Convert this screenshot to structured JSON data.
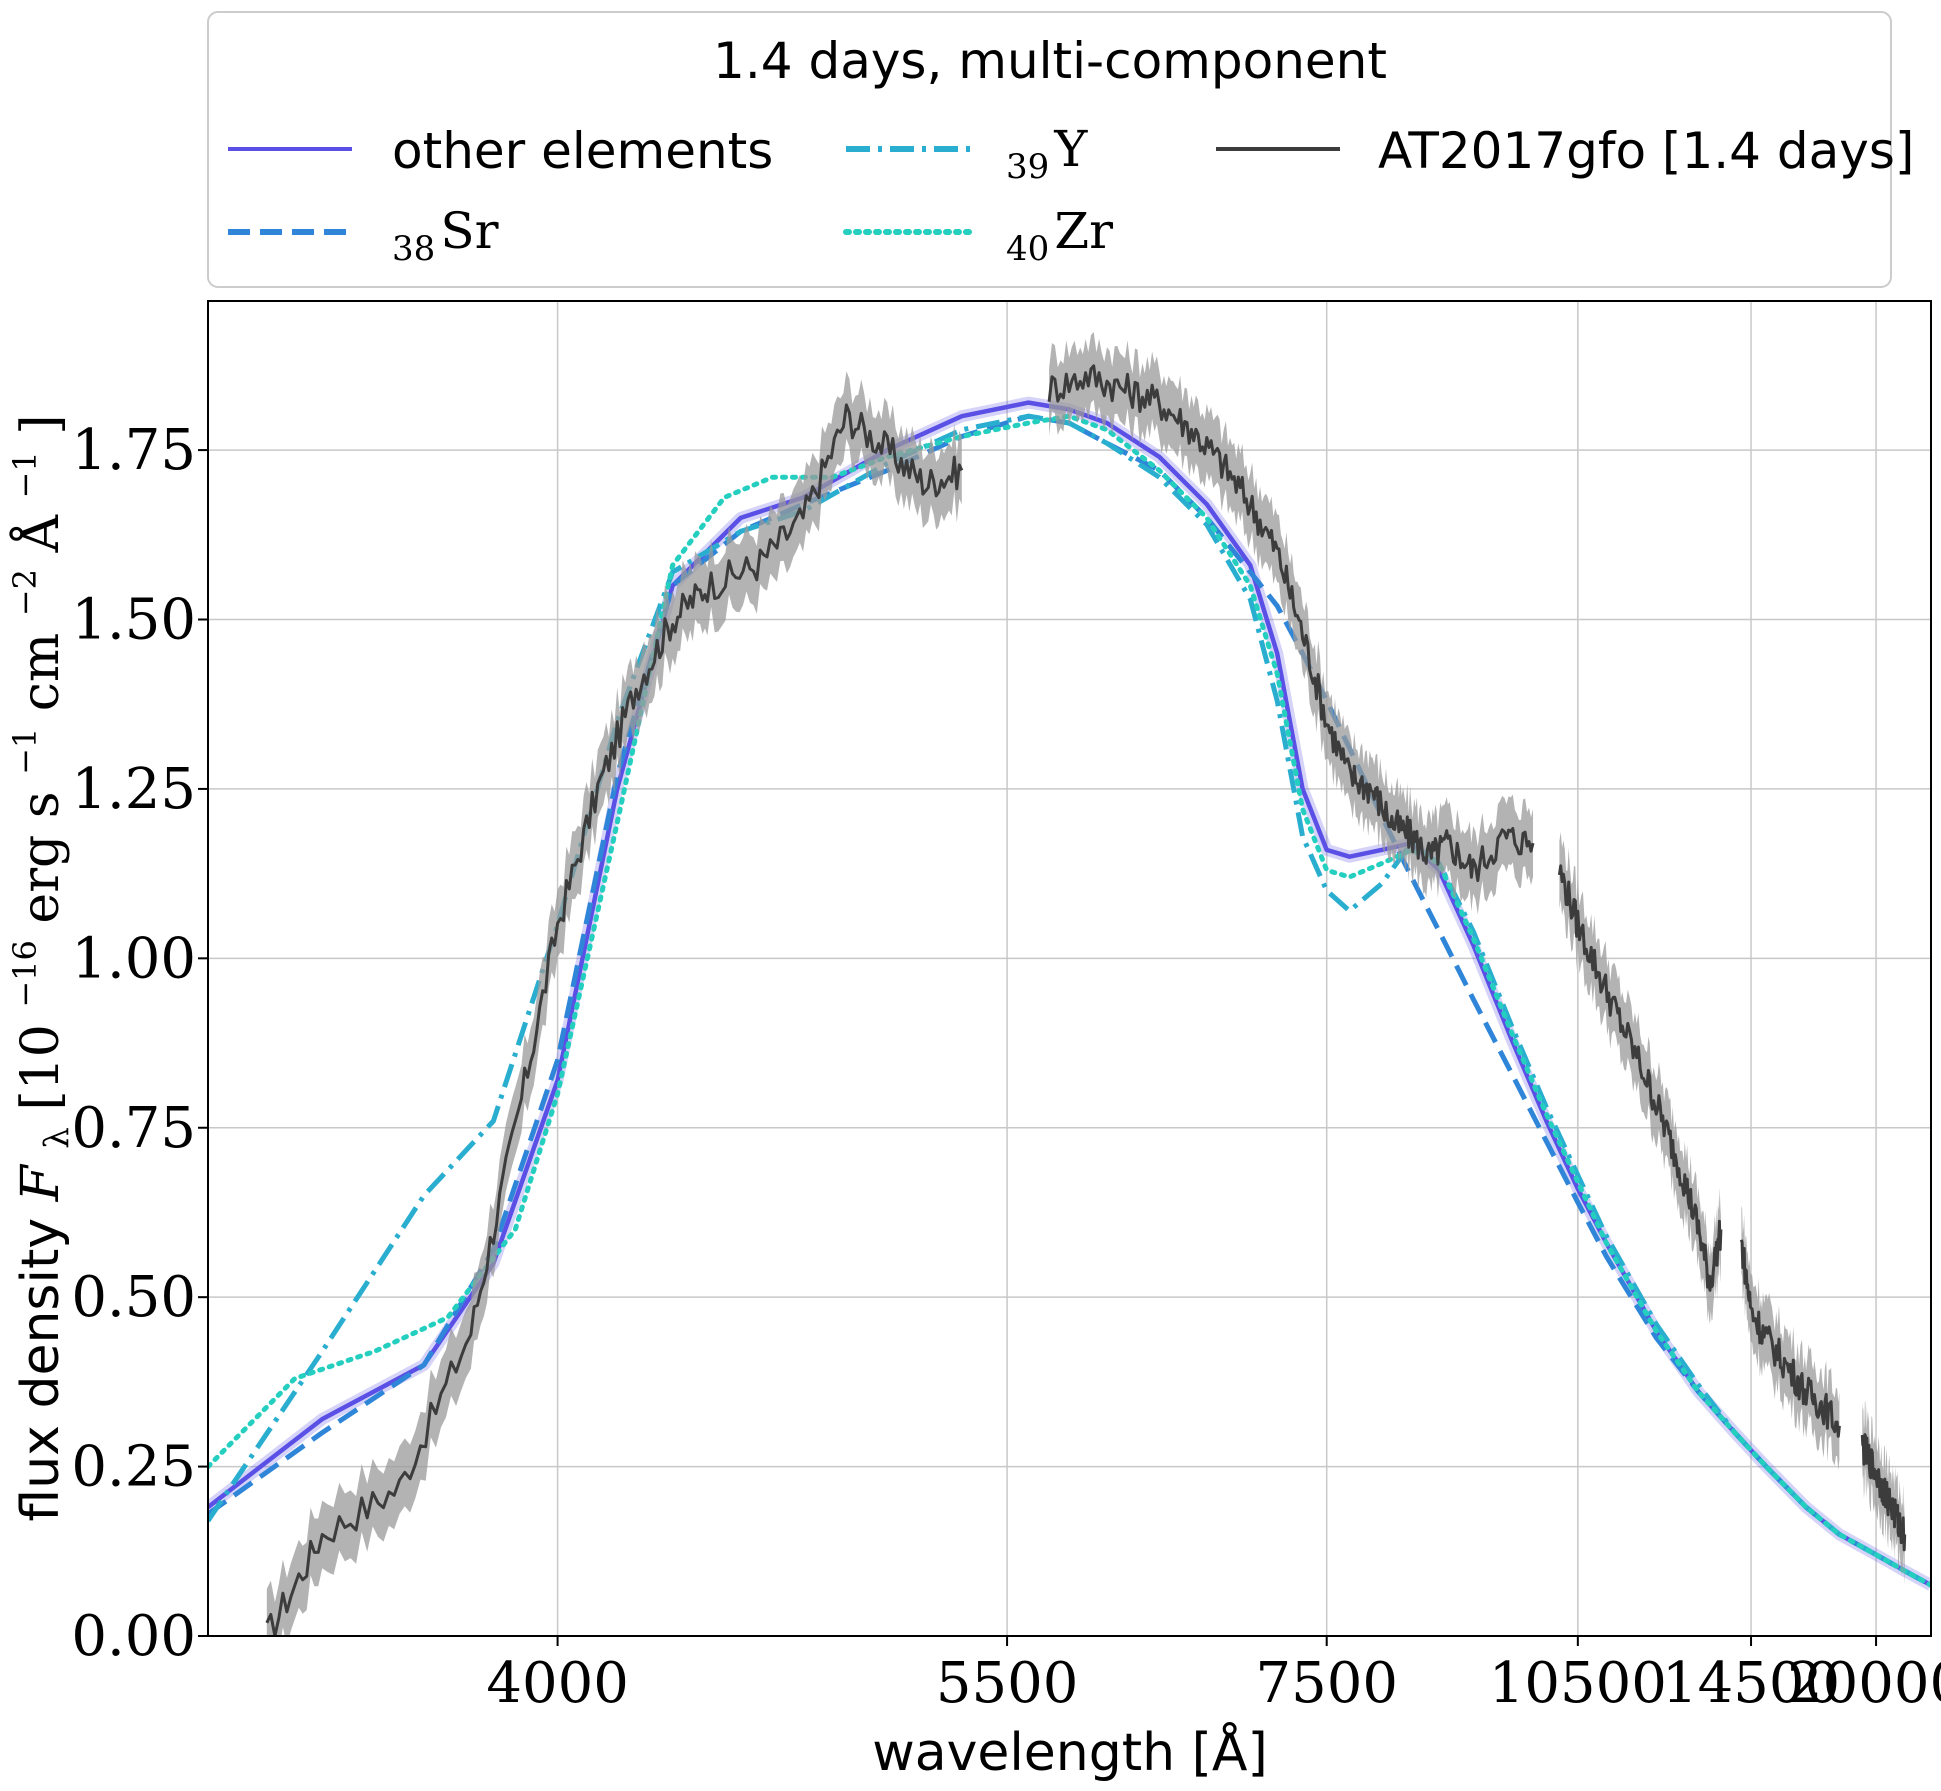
{
  "chart_data": {
    "type": "line",
    "legend_title": "1.4 days, multi-component",
    "legend_placement": "top-center (outside, above plot)",
    "grid": true,
    "xlabel": "wavelength [Å]",
    "ylabel_prefix": "flux density ",
    "ylabel_var": "F",
    "ylabel_var_sub": "λ",
    "ylabel_units": " [10",
    "ylabel_units_exp": "−16",
    "ylabel_units_rest": " erg s",
    "ylabel_units_exp2": "−1",
    "ylabel_units_rest2": " cm",
    "ylabel_units_exp3": "−2",
    "ylabel_units_rest3": " Å",
    "ylabel_units_exp4": "−1",
    "ylabel_units_end": "]",
    "x_scale": "reciprocal",
    "xlim": [
      3300,
      24000
    ],
    "ylim": [
      0.0,
      1.97
    ],
    "x_ticks": [
      4000,
      5500,
      7500,
      10500,
      14500,
      20000
    ],
    "x_tick_labels": [
      "4000",
      "5500",
      "7500",
      "10500",
      "14500",
      "20000"
    ],
    "y_ticks": [
      0.0,
      0.25,
      0.5,
      0.75,
      1.0,
      1.25,
      1.5,
      1.75
    ],
    "y_tick_labels": [
      "0.00",
      "0.25",
      "0.50",
      "0.75",
      "1.00",
      "1.25",
      "1.50",
      "1.75"
    ],
    "series": [
      {
        "name": "other elements",
        "element": "",
        "style": "solid-band",
        "color": "#5a50e6",
        "x": [
          3300,
          3500,
          3700,
          3850,
          4000,
          4150,
          4300,
          4500,
          4700,
          5000,
          5300,
          5600,
          5800,
          6000,
          6300,
          6600,
          6900,
          7100,
          7300,
          7500,
          7700,
          8000,
          8300,
          8600,
          9000,
          9500,
          10000,
          10500,
          11000,
          12000,
          13000,
          14000,
          15000,
          16500,
          18000,
          20000,
          22000,
          24000
        ],
        "y": [
          0.19,
          0.32,
          0.4,
          0.55,
          0.82,
          1.25,
          1.55,
          1.65,
          1.68,
          1.75,
          1.8,
          1.82,
          1.81,
          1.79,
          1.74,
          1.67,
          1.58,
          1.45,
          1.25,
          1.16,
          1.15,
          1.16,
          1.17,
          1.13,
          1.02,
          0.88,
          0.76,
          0.66,
          0.58,
          0.45,
          0.36,
          0.3,
          0.25,
          0.19,
          0.15,
          0.12,
          0.095,
          0.075
        ]
      },
      {
        "name": "Sr",
        "element": "Sr",
        "sub": "38",
        "style": "dashed",
        "color": "#2f86d8",
        "x": [
          3300,
          3500,
          3700,
          3850,
          4000,
          4150,
          4300,
          4500,
          4700,
          5000,
          5300,
          5600,
          5800,
          6000,
          6300,
          6600,
          6900,
          7100,
          7300,
          7500,
          7700,
          8000,
          8300,
          8600,
          9000,
          9500,
          10000,
          10500,
          11000,
          12000,
          13000,
          14000,
          15000,
          16500,
          18000,
          20000,
          22000,
          24000
        ],
        "y": [
          0.18,
          0.3,
          0.4,
          0.57,
          0.85,
          1.27,
          1.55,
          1.63,
          1.67,
          1.72,
          1.77,
          1.8,
          1.79,
          1.76,
          1.72,
          1.65,
          1.57,
          1.52,
          1.45,
          1.38,
          1.31,
          1.21,
          1.12,
          1.04,
          0.94,
          0.83,
          0.73,
          0.64,
          0.56,
          0.44,
          0.36,
          0.3,
          0.25,
          0.19,
          0.15,
          0.12,
          0.095,
          0.075
        ]
      },
      {
        "name": "Y",
        "element": "Y",
        "sub": "39",
        "style": "dashdot",
        "color": "#2aaed0",
        "x": [
          3300,
          3500,
          3700,
          3850,
          4000,
          4150,
          4300,
          4500,
          4700,
          5000,
          5300,
          5600,
          5800,
          6000,
          6300,
          6600,
          6900,
          7100,
          7300,
          7500,
          7700,
          8000,
          8300,
          8600,
          9000,
          9500,
          10000,
          10500,
          11000,
          12000,
          13000,
          14000,
          15000,
          16500,
          18000,
          20000,
          22000,
          24000
        ],
        "y": [
          0.17,
          0.42,
          0.65,
          0.76,
          1.05,
          1.35,
          1.57,
          1.63,
          1.66,
          1.73,
          1.78,
          1.8,
          1.79,
          1.76,
          1.71,
          1.64,
          1.53,
          1.38,
          1.18,
          1.1,
          1.07,
          1.11,
          1.17,
          1.14,
          1.04,
          0.9,
          0.78,
          0.68,
          0.59,
          0.46,
          0.37,
          0.3,
          0.25,
          0.19,
          0.15,
          0.12,
          0.095,
          0.075
        ]
      },
      {
        "name": "Zr",
        "element": "Zr",
        "sub": "40",
        "style": "dotted",
        "color": "#25cfc0",
        "x": [
          3300,
          3450,
          3600,
          3750,
          3900,
          4000,
          4150,
          4300,
          4450,
          4600,
          4800,
          5000,
          5300,
          5600,
          5800,
          6000,
          6300,
          6600,
          6900,
          7100,
          7300,
          7500,
          7700,
          8000,
          8300,
          8600,
          9000,
          9500,
          10000,
          10500,
          11000,
          12000,
          13000,
          14000,
          15000,
          16500,
          18000,
          20000,
          22000,
          24000
        ],
        "y": [
          0.25,
          0.38,
          0.42,
          0.47,
          0.6,
          0.8,
          1.2,
          1.58,
          1.68,
          1.71,
          1.71,
          1.74,
          1.77,
          1.79,
          1.8,
          1.78,
          1.72,
          1.65,
          1.55,
          1.42,
          1.22,
          1.13,
          1.12,
          1.14,
          1.16,
          1.14,
          1.03,
          0.89,
          0.77,
          0.67,
          0.58,
          0.45,
          0.36,
          0.3,
          0.25,
          0.19,
          0.15,
          0.12,
          0.095,
          0.075
        ]
      },
      {
        "name": "AT2017gfo [1.4 days]",
        "element": "",
        "style": "observed",
        "color": "#3c3c3c",
        "segments": [
          {
            "x": [
              3400,
              3500,
              3650,
              3800,
              3900,
              4000,
              4100,
              4200,
              4300,
              4400,
              4550,
              4700,
              4850,
              5000,
              5150,
              5300
            ],
            "y": [
              0.0,
              0.15,
              0.22,
              0.45,
              0.75,
              1.05,
              1.25,
              1.4,
              1.5,
              1.55,
              1.58,
              1.65,
              1.8,
              1.75,
              1.7,
              1.72
            ]
          },
          {
            "x": [
              5700,
              5900,
              6100,
              6300,
              6500,
              6700,
              6900,
              7100,
              7300,
              7500,
              7700,
              7900,
              8100,
              8300,
              8500,
              8700,
              9000,
              9400,
              9800
            ],
            "y": [
              1.84,
              1.86,
              1.84,
              1.82,
              1.78,
              1.73,
              1.67,
              1.6,
              1.48,
              1.35,
              1.27,
              1.25,
              1.2,
              1.18,
              1.15,
              1.17,
              1.13,
              1.18,
              1.17
            ]
          },
          {
            "x": [
              10200,
              10500,
              10900,
              11300,
              11800,
              12200,
              12600,
              13000,
              13300,
              13600
            ],
            "y": [
              1.13,
              1.05,
              0.97,
              0.9,
              0.82,
              0.75,
              0.68,
              0.6,
              0.52,
              0.6
            ]
          },
          {
            "x": [
              14200,
              14500,
              15000,
              15700,
              16500,
              17200,
              18000
            ],
            "y": [
              0.58,
              0.48,
              0.44,
              0.4,
              0.36,
              0.34,
              0.31
            ]
          },
          {
            "x": [
              19200,
              19600,
              20200,
              20800,
              21400,
              21900
            ],
            "y": [
              0.28,
              0.26,
              0.23,
              0.2,
              0.17,
              0.15
            ]
          }
        ]
      }
    ]
  }
}
